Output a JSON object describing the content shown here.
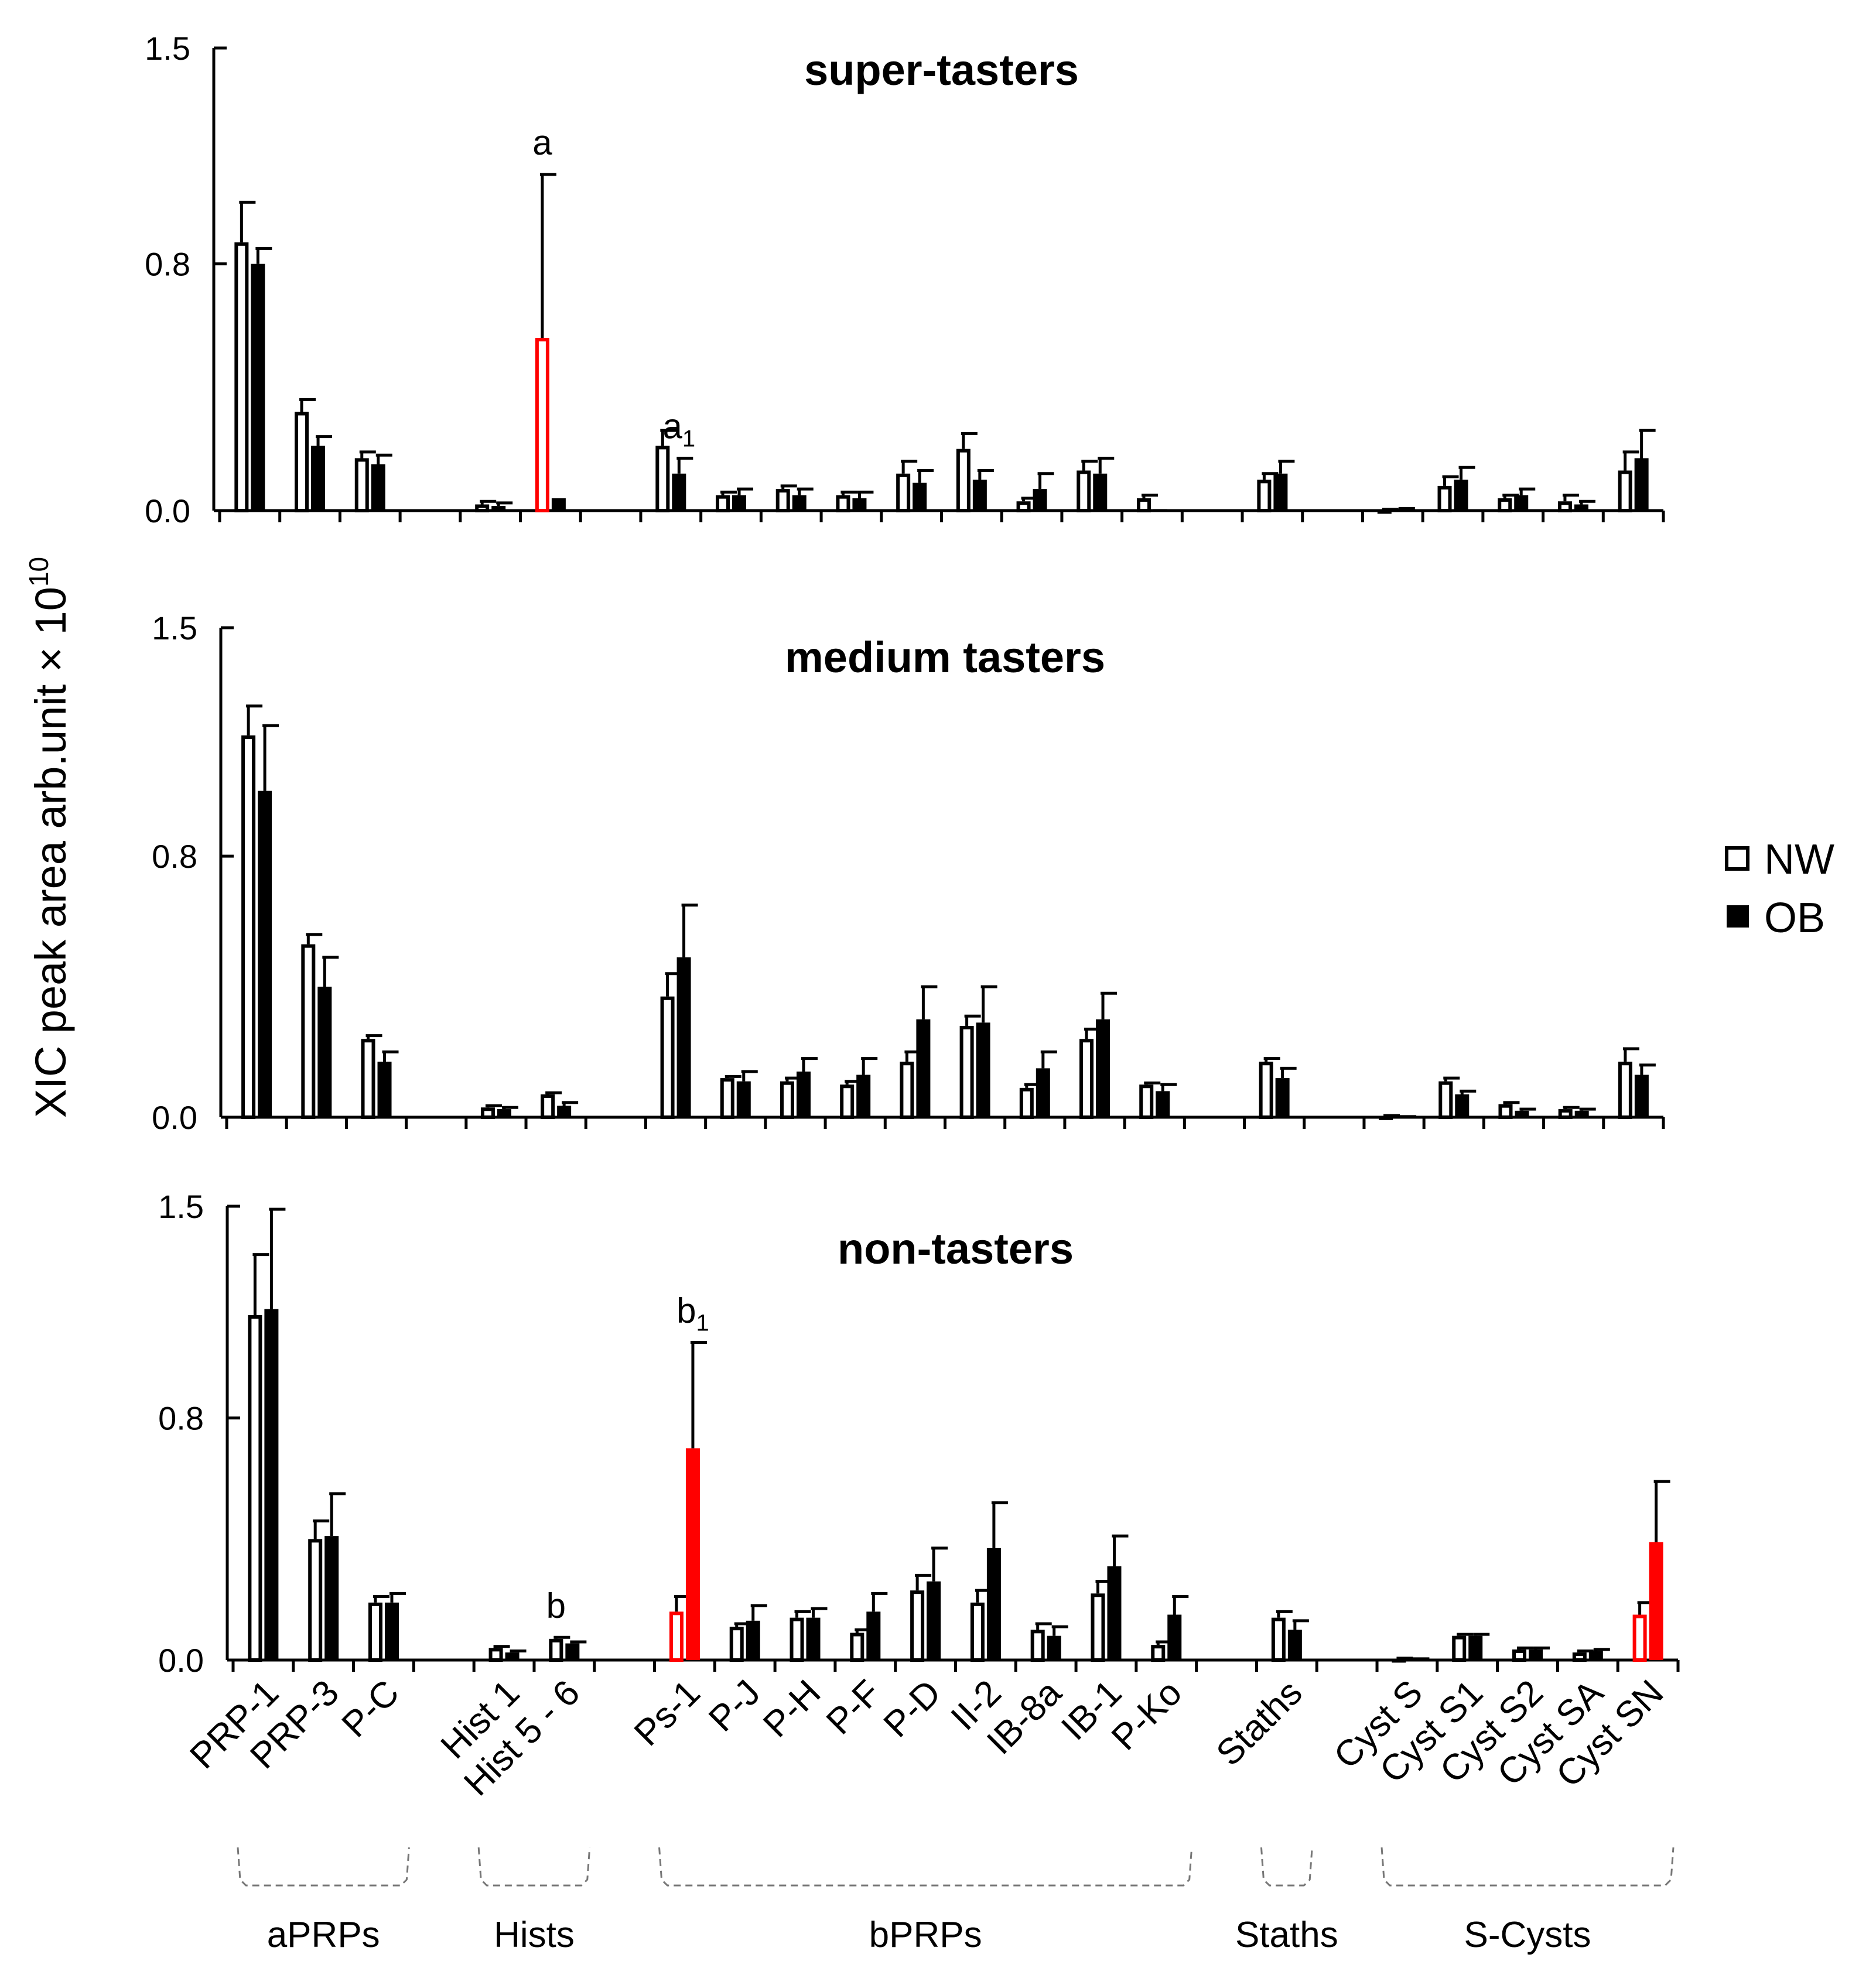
{
  "chart_data": {
    "type": "bar",
    "ylabel": "XIC peak area arb.unit × 10",
    "ylabel_exponent": "10",
    "ylim": [
      0,
      1.5
    ],
    "yticks": [
      "0.0",
      "0.8",
      "1.5"
    ],
    "ytick_values": [
      0,
      0.8,
      1.5
    ],
    "categories": [
      "PRP-1",
      "PRP-3",
      "P-C",
      "",
      "Hist 1",
      "Hist 5 - 6",
      "",
      "Ps-1",
      "P-J",
      "P-H",
      "P-F",
      "P-D",
      "II-2",
      "IB-8a",
      "IB-1",
      "P-Ko",
      "",
      "Staths",
      "",
      "Cyst S",
      "Cyst S1",
      "Cyst S2",
      "Cyst SA",
      "Cyst SN"
    ],
    "groups": [
      {
        "label": "aPRPs",
        "from": 0,
        "to": 2
      },
      {
        "label": "Hists",
        "from": 4,
        "to": 5
      },
      {
        "label": "bPRPs",
        "from": 7,
        "to": 15
      },
      {
        "label": "Staths",
        "from": 17,
        "to": 17
      },
      {
        "label": "S-Cysts",
        "from": 19,
        "to": 23
      }
    ],
    "legend": [
      {
        "name": "NW",
        "style": "open"
      },
      {
        "name": "OB",
        "style": "filled"
      }
    ],
    "highlight_color": "#ff0000",
    "panels": [
      {
        "title": "super-tasters",
        "series": [
          {
            "name": "NW",
            "values": [
              0.87,
              0.32,
              0.17,
              null,
              0.02,
              0.56,
              null,
              0.21,
              0.05,
              0.07,
              0.05,
              0.12,
              0.2,
              0.03,
              0.13,
              0.04,
              null,
              0.1,
              null,
              0.002,
              0.08,
              0.04,
              0.03,
              0.13
            ],
            "errors": [
              0.13,
              0.04,
              0.02,
              null,
              0.01,
              0.53,
              null,
              0.05,
              0.01,
              0.01,
              0.01,
              0.04,
              0.05,
              0.01,
              0.03,
              0.01,
              null,
              0.02,
              null,
              0.002,
              0.03,
              0.01,
              0.02,
              0.06
            ],
            "highlight": [
              5
            ]
          },
          {
            "name": "OB",
            "values": [
              0.8,
              0.21,
              0.15,
              null,
              0.015,
              0.04,
              null,
              0.12,
              0.05,
              0.05,
              0.04,
              0.09,
              0.1,
              0.07,
              0.12,
              0.005,
              null,
              0.12,
              null,
              0.005,
              0.1,
              0.05,
              0.02,
              0.17
            ],
            "errors": [
              0.05,
              0.03,
              0.03,
              null,
              0.01,
              0.0,
              null,
              0.05,
              0.02,
              0.02,
              0.02,
              0.04,
              0.03,
              0.05,
              0.05,
              0.0,
              null,
              0.04,
              null,
              0.002,
              0.04,
              0.02,
              0.01,
              0.09
            ],
            "highlight": []
          }
        ],
        "annotations": [
          {
            "text": "a",
            "sub": "",
            "category": 5,
            "series": "NW"
          },
          {
            "text": "a",
            "sub": "1",
            "category": 7,
            "series": "OB"
          }
        ]
      },
      {
        "title": "medium tasters",
        "series": [
          {
            "name": "NW",
            "values": [
              1.17,
              0.53,
              0.24,
              null,
              0.03,
              0.07,
              null,
              0.37,
              0.12,
              0.11,
              0.1,
              0.17,
              0.28,
              0.09,
              0.24,
              0.1,
              null,
              0.17,
              null,
              0.003,
              0.11,
              0.04,
              0.025,
              0.17
            ],
            "errors": [
              0.09,
              0.03,
              0.01,
              null,
              0.005,
              0.005,
              null,
              0.07,
              0.005,
              0.01,
              0.01,
              0.03,
              0.03,
              0.01,
              0.03,
              0.005,
              null,
              0.01,
              null,
              0.002,
              0.01,
              0.005,
              0.005,
              0.04
            ],
            "highlight": []
          },
          {
            "name": "OB",
            "values": [
              1.0,
              0.4,
              0.17,
              null,
              0.025,
              0.035,
              null,
              0.49,
              0.11,
              0.14,
              0.13,
              0.3,
              0.29,
              0.15,
              0.3,
              0.08,
              null,
              0.12,
              null,
              0.001,
              0.07,
              0.02,
              0.02,
              0.13
            ],
            "errors": [
              0.2,
              0.09,
              0.03,
              null,
              0.005,
              0.01,
              null,
              0.16,
              0.03,
              0.04,
              0.05,
              0.1,
              0.11,
              0.05,
              0.08,
              0.02,
              null,
              0.03,
              null,
              0.001,
              0.01,
              0.005,
              0.005,
              0.03
            ],
            "highlight": []
          }
        ],
        "annotations": []
      },
      {
        "title": "non-tasters",
        "series": [
          {
            "name": "NW",
            "values": [
              1.14,
              0.4,
              0.19,
              null,
              0.04,
              0.07,
              null,
              0.16,
              0.11,
              0.14,
              0.09,
              0.23,
              0.19,
              0.1,
              0.22,
              0.05,
              null,
              0.14,
              null,
              0.004,
              0.08,
              0.035,
              0.025,
              0.15
            ],
            "errors": [
              0.2,
              0.06,
              0.02,
              null,
              0.005,
              0.005,
              null,
              0.05,
              0.01,
              0.02,
              0.01,
              0.05,
              0.04,
              0.02,
              0.04,
              0.01,
              null,
              0.02,
              null,
              0.002,
              0.005,
              0.005,
              0.005,
              0.04
            ],
            "highlight": [
              7,
              23
            ]
          },
          {
            "name": "OB",
            "values": [
              1.16,
              0.41,
              0.19,
              null,
              0.025,
              0.055,
              null,
              0.7,
              0.13,
              0.14,
              0.16,
              0.26,
              0.37,
              0.08,
              0.31,
              0.15,
              null,
              0.1,
              null,
              0.003,
              0.08,
              0.035,
              0.03,
              0.39
            ],
            "errors": [
              0.33,
              0.14,
              0.03,
              null,
              0.005,
              0.005,
              null,
              0.35,
              0.05,
              0.03,
              0.06,
              0.11,
              0.15,
              0.03,
              0.1,
              0.06,
              null,
              0.03,
              null,
              0.001,
              0.005,
              0.005,
              0.005,
              0.2
            ],
            "highlight": [
              7,
              23
            ]
          }
        ],
        "annotations": [
          {
            "text": "b",
            "sub": "",
            "category": 5,
            "series": "NW"
          },
          {
            "text": "b",
            "sub": "1",
            "category": 7,
            "series": "OB"
          }
        ]
      }
    ]
  }
}
